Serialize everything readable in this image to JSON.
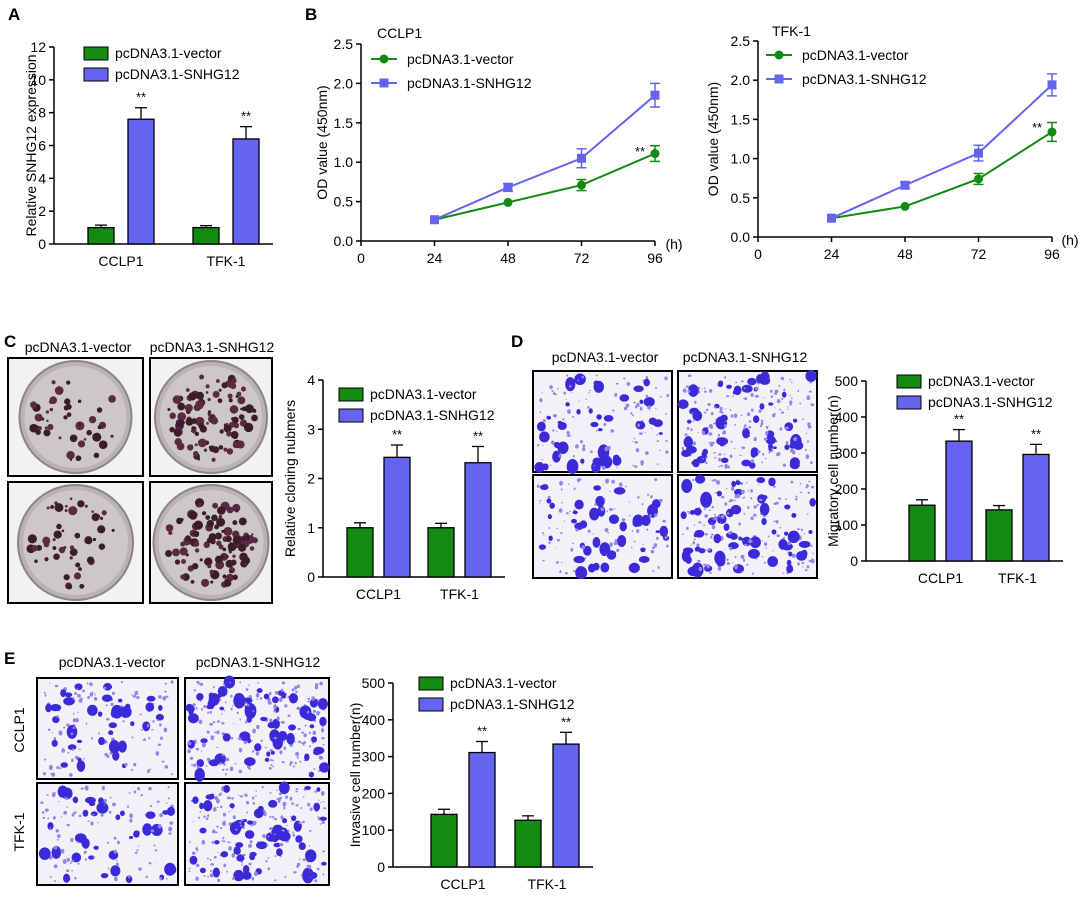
{
  "colors": {
    "vector": "#138a13",
    "snhg12": "#6464f0",
    "axis": "#000000",
    "purple": "#3a2ad8"
  },
  "legend": {
    "vector": "pcDNA3.1-vector",
    "snhg12": "pcDNA3.1-SNHG12"
  },
  "panel_labels": {
    "A": "A",
    "B": "B",
    "C": "C",
    "D": "D",
    "E": "E"
  },
  "image_panels": {
    "col_left": "pcDNA3.1-vector",
    "col_right": "pcDNA3.1-SNHG12",
    "row_top": "CCLP1",
    "row_bottom": "TFK-1"
  },
  "chart_data": [
    {
      "id": "A",
      "type": "bar",
      "categories": [
        "CCLP1",
        "TFK-1"
      ],
      "series": [
        {
          "name": "pcDNA3.1-vector",
          "values": [
            1.0,
            1.0
          ],
          "errors": [
            0.15,
            0.12
          ]
        },
        {
          "name": "pcDNA3.1-SNHG12",
          "values": [
            7.6,
            6.4
          ],
          "errors": [
            0.7,
            0.75
          ]
        }
      ],
      "ylabel": "Relative SNHG12 expression",
      "ylim": [
        0,
        12
      ],
      "yticks": [
        0,
        2,
        4,
        6,
        8,
        10,
        12
      ],
      "annotations": [
        "**",
        "**"
      ]
    },
    {
      "id": "B1",
      "type": "line",
      "title": "CCLP1",
      "x": [
        24,
        48,
        72,
        96
      ],
      "series": [
        {
          "name": "pcDNA3.1-vector",
          "values": [
            0.27,
            0.49,
            0.71,
            1.11
          ],
          "errors": [
            0.02,
            0.02,
            0.07,
            0.1
          ]
        },
        {
          "name": "pcDNA3.1-SNHG12",
          "values": [
            0.27,
            0.68,
            1.05,
            1.85
          ],
          "errors": [
            0.02,
            0.05,
            0.12,
            0.15
          ]
        }
      ],
      "ylabel": "OD value (450nm)",
      "xunit": "(h)",
      "xlim": [
        0,
        96
      ],
      "xticks": [
        0,
        24,
        48,
        72,
        96
      ],
      "ylim": [
        0,
        2.5
      ],
      "yticks": [
        "0.0",
        "0.5",
        "1.0",
        "1.5",
        "2.0",
        "2.5"
      ],
      "annotation": "**"
    },
    {
      "id": "B2",
      "type": "line",
      "title": "TFK-1",
      "x": [
        24,
        48,
        72,
        96
      ],
      "series": [
        {
          "name": "pcDNA3.1-vector",
          "values": [
            0.24,
            0.39,
            0.74,
            1.34
          ],
          "errors": [
            0.02,
            0.02,
            0.07,
            0.12
          ]
        },
        {
          "name": "pcDNA3.1-SNHG12",
          "values": [
            0.24,
            0.66,
            1.07,
            1.94
          ],
          "errors": [
            0.02,
            0.04,
            0.1,
            0.14
          ]
        }
      ],
      "ylabel": "OD value (450nm)",
      "xunit": "(h)",
      "xlim": [
        0,
        96
      ],
      "xticks": [
        0,
        24,
        48,
        72,
        96
      ],
      "ylim": [
        0,
        2.5
      ],
      "yticks": [
        "0.0",
        "0.5",
        "1.0",
        "1.5",
        "2.0",
        "2.5"
      ],
      "annotation": "**"
    },
    {
      "id": "C",
      "type": "bar",
      "categories": [
        "CCLP1",
        "TFK-1"
      ],
      "series": [
        {
          "name": "pcDNA3.1-vector",
          "values": [
            1.0,
            1.0
          ],
          "errors": [
            0.1,
            0.09
          ]
        },
        {
          "name": "pcDNA3.1-SNHG12",
          "values": [
            2.43,
            2.32
          ],
          "errors": [
            0.25,
            0.33
          ]
        }
      ],
      "ylabel": "Relative cloning nubmers",
      "ylim": [
        0,
        4
      ],
      "yticks": [
        0,
        1,
        2,
        3,
        4
      ],
      "annotations": [
        "**",
        "**"
      ]
    },
    {
      "id": "D",
      "type": "bar",
      "categories": [
        "CCLP1",
        "TFK-1"
      ],
      "series": [
        {
          "name": "pcDNA3.1-vector",
          "values": [
            155,
            142
          ],
          "errors": [
            15,
            12
          ]
        },
        {
          "name": "pcDNA3.1-SNHG12",
          "values": [
            333,
            296
          ],
          "errors": [
            32,
            28
          ]
        }
      ],
      "ylabel": "Migratory cell number(n)",
      "ylim": [
        0,
        500
      ],
      "yticks": [
        0,
        100,
        200,
        300,
        400,
        500
      ],
      "annotations": [
        "**",
        "**"
      ]
    },
    {
      "id": "E",
      "type": "bar",
      "categories": [
        "CCLP1",
        "TFK-1"
      ],
      "series": [
        {
          "name": "pcDNA3.1-vector",
          "values": [
            143,
            127
          ],
          "errors": [
            14,
            12
          ]
        },
        {
          "name": "pcDNA3.1-SNHG12",
          "values": [
            311,
            334
          ],
          "errors": [
            30,
            32
          ]
        }
      ],
      "ylabel": "Invasive cell number(n)",
      "ylim": [
        0,
        500
      ],
      "yticks": [
        0,
        100,
        200,
        300,
        400,
        500
      ],
      "annotations": [
        "**",
        "**"
      ]
    }
  ]
}
